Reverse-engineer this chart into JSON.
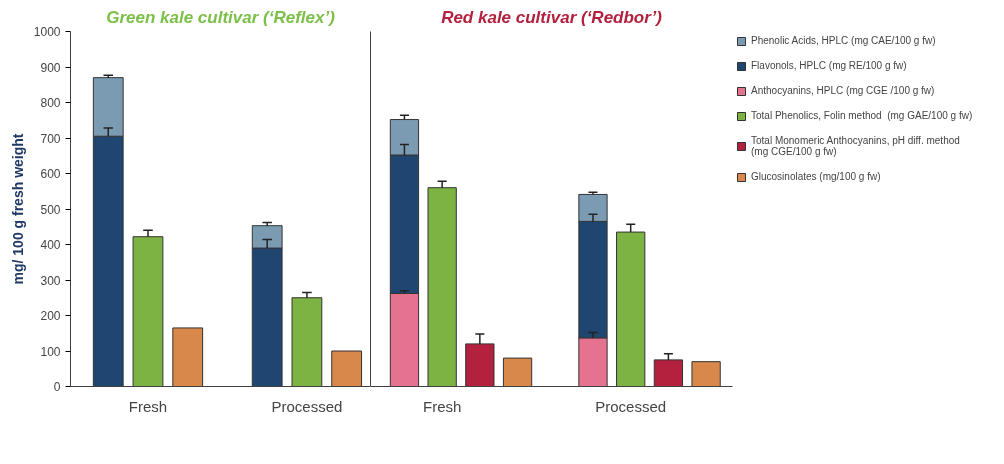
{
  "chart_data": [
    {
      "type": "bar",
      "stacked": true,
      "title": "Green kale cultivar (‘Reflex’)",
      "ylabel": "mg/ 100 g fresh weight",
      "categories": [
        null,
        "Fresh",
        null,
        null,
        null,
        "Processed",
        null
      ],
      "ylim": [
        0,
        1000
      ],
      "yticks": [
        0,
        100,
        200,
        300,
        400,
        500,
        600,
        700,
        800,
        900,
        1000
      ],
      "grid": false,
      "series": [
        {
          "color": "#1f4571",
          "values": [
            705,
            null,
            null,
            null,
            390,
            null,
            null
          ],
          "errors": [
            23,
            null,
            null,
            null,
            24,
            null,
            null
          ]
        },
        {
          "color": "#7b9bb2",
          "values": [
            165,
            null,
            null,
            null,
            63,
            null,
            null
          ],
          "errors": [
            7,
            null,
            null,
            null,
            9,
            null,
            null
          ]
        },
        {
          "color": "#7cb342",
          "values": [
            null,
            422,
            null,
            null,
            null,
            250,
            null
          ],
          "errors": [
            null,
            18,
            null,
            null,
            null,
            15,
            null
          ]
        },
        {
          "color": "#d8884a",
          "values": [
            null,
            null,
            165,
            null,
            null,
            null,
            100
          ]
        }
      ]
    },
    {
      "type": "bar",
      "stacked": true,
      "title": "Red kale cultivar (‘Redbor’)",
      "categories": [
        null,
        "Fresh",
        null,
        null,
        null,
        null,
        "Processed",
        null,
        null
      ],
      "ylim": [
        0,
        1000
      ],
      "tick_labels": "x",
      "grid": false,
      "legend": "right",
      "series": [
        {
          "name": "Anthocyanins, HPLC (mg CGE /100 g fw)",
          "color": "#e5728f",
          "values": [
            262,
            null,
            null,
            null,
            null,
            137,
            null,
            null,
            null
          ],
          "errors": [
            8,
            null,
            null,
            null,
            null,
            15,
            null,
            null,
            null
          ]
        },
        {
          "name": "Flavonols, HPLC (mg RE/100 g fw)",
          "color": "#1f4571",
          "values": [
            390,
            null,
            null,
            null,
            null,
            328,
            null,
            null,
            null
          ],
          "errors": [
            30,
            null,
            null,
            null,
            null,
            20,
            null,
            null,
            null
          ]
        },
        {
          "name": "Phenolic Acids, HPLC (mg CAE/100 g fw)",
          "color": "#7b9bb2",
          "values": [
            100,
            null,
            null,
            null,
            null,
            76,
            null,
            null,
            null
          ],
          "errors": [
            12,
            null,
            null,
            null,
            null,
            6,
            null,
            null,
            null
          ]
        },
        {
          "name": "Total Phenolics, Folin method  (mg GAE/100 g fw)",
          "color": "#7cb342",
          "values": [
            null,
            560,
            null,
            null,
            null,
            null,
            435,
            null,
            null
          ],
          "errors": [
            null,
            18,
            null,
            null,
            null,
            null,
            22,
            null,
            null
          ]
        },
        {
          "name": "Total Monomeric Anthocyanins, pH diff. method\n(mg CGE/100 g fw)",
          "color": "#b3213f",
          "values": [
            null,
            null,
            120,
            null,
            null,
            null,
            null,
            75,
            null
          ],
          "errors": [
            null,
            null,
            28,
            null,
            null,
            null,
            null,
            17,
            null
          ]
        },
        {
          "name": "Glucosinolates (mg/100 g fw)",
          "color": "#d8884a",
          "values": [
            null,
            null,
            null,
            80,
            null,
            null,
            null,
            null,
            70
          ]
        }
      ]
    }
  ]
}
